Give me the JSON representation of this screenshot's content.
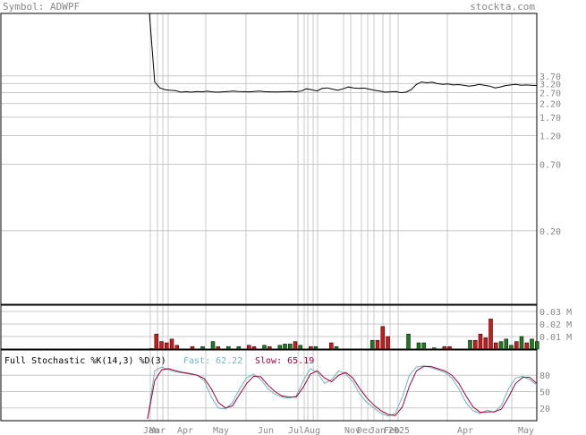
{
  "header": {
    "symbol_label": "Symbol: ADWPF",
    "site": "stockta.com"
  },
  "chart_data": [
    {
      "type": "line",
      "panel": "price",
      "scale": "log",
      "ylim": [
        0.05,
        12
      ],
      "y_ticks": [
        "3.70",
        "3.20",
        "2.70",
        "2.20",
        "1.70",
        "1.20",
        "0.70",
        "0.20"
      ],
      "y_tick_values": [
        3.7,
        3.2,
        2.7,
        2.2,
        1.7,
        1.2,
        0.7,
        0.2
      ],
      "x_ticks": [
        "Jan",
        "Mar",
        "Apr",
        "May",
        "Jun",
        "Jul",
        "Aug",
        "Nov",
        "Dec",
        "Jan",
        "Feb",
        "2025",
        "Apr",
        "May"
      ],
      "series": [
        {
          "points": [
            [
              0,
              12.0
            ],
            [
              1,
              3.3
            ],
            [
              2,
              2.95
            ],
            [
              3,
              2.85
            ],
            [
              4,
              2.82
            ],
            [
              5,
              2.8
            ],
            [
              6,
              2.72
            ],
            [
              7,
              2.75
            ],
            [
              8,
              2.72
            ],
            [
              9,
              2.76
            ],
            [
              10,
              2.74
            ],
            [
              11,
              2.77
            ],
            [
              12,
              2.74
            ],
            [
              13,
              2.72
            ],
            [
              14,
              2.74
            ],
            [
              15,
              2.76
            ],
            [
              16,
              2.78
            ],
            [
              17,
              2.76
            ],
            [
              18,
              2.75
            ],
            [
              19,
              2.74
            ],
            [
              20,
              2.76
            ],
            [
              21,
              2.78
            ],
            [
              22,
              2.75
            ],
            [
              23,
              2.74
            ],
            [
              24,
              2.73
            ],
            [
              25,
              2.74
            ],
            [
              26,
              2.75
            ],
            [
              27,
              2.76
            ],
            [
              28,
              2.74
            ],
            [
              29,
              2.78
            ],
            [
              30,
              2.9
            ],
            [
              31,
              2.85
            ],
            [
              32,
              2.78
            ],
            [
              33,
              2.92
            ],
            [
              34,
              2.95
            ],
            [
              35,
              2.88
            ],
            [
              36,
              2.82
            ],
            [
              37,
              2.9
            ],
            [
              38,
              3.0
            ],
            [
              39,
              2.95
            ],
            [
              40,
              2.92
            ],
            [
              41,
              2.94
            ],
            [
              42,
              2.88
            ],
            [
              43,
              2.82
            ],
            [
              44,
              2.78
            ],
            [
              45,
              2.72
            ],
            [
              46,
              2.74
            ],
            [
              47,
              2.76
            ],
            [
              48,
              2.7
            ],
            [
              49,
              2.72
            ],
            [
              50,
              2.85
            ],
            [
              51,
              3.15
            ],
            [
              52,
              3.3
            ],
            [
              53,
              3.25
            ],
            [
              54,
              3.28
            ],
            [
              55,
              3.2
            ],
            [
              56,
              3.15
            ],
            [
              57,
              3.18
            ],
            [
              58,
              3.12
            ],
            [
              59,
              3.14
            ],
            [
              60,
              3.1
            ],
            [
              61,
              3.05
            ],
            [
              62,
              3.08
            ],
            [
              63,
              3.15
            ],
            [
              64,
              3.1
            ],
            [
              65,
              3.05
            ],
            [
              66,
              2.95
            ],
            [
              67,
              3.0
            ],
            [
              68,
              3.08
            ],
            [
              69,
              3.12
            ],
            [
              70,
              3.15
            ],
            [
              71,
              3.1
            ],
            [
              72,
              3.12
            ],
            [
              73,
              3.1
            ],
            [
              74,
              3.08
            ]
          ]
        }
      ]
    },
    {
      "type": "bar",
      "panel": "volume",
      "y_ticks": [
        "0.03 M",
        "0.02 M",
        "0.01 M"
      ],
      "y_tick_values": [
        0.03,
        0.02,
        0.01
      ],
      "ylim": [
        0,
        0.035
      ],
      "bars": [
        {
          "x": 0,
          "value": 0.0005,
          "dir": "up"
        },
        {
          "x": 1,
          "value": 0.012,
          "dir": "down"
        },
        {
          "x": 2,
          "value": 0.006,
          "dir": "down"
        },
        {
          "x": 3,
          "value": 0.005,
          "dir": "down"
        },
        {
          "x": 4,
          "value": 0.008,
          "dir": "down"
        },
        {
          "x": 5,
          "value": 0.003,
          "dir": "down"
        },
        {
          "x": 8,
          "value": 0.002,
          "dir": "down"
        },
        {
          "x": 10,
          "value": 0.002,
          "dir": "up"
        },
        {
          "x": 12,
          "value": 0.006,
          "dir": "up"
        },
        {
          "x": 13,
          "value": 0.002,
          "dir": "down"
        },
        {
          "x": 15,
          "value": 0.002,
          "dir": "up"
        },
        {
          "x": 17,
          "value": 0.002,
          "dir": "up"
        },
        {
          "x": 19,
          "value": 0.003,
          "dir": "down"
        },
        {
          "x": 20,
          "value": 0.002,
          "dir": "down"
        },
        {
          "x": 22,
          "value": 0.003,
          "dir": "up"
        },
        {
          "x": 23,
          "value": 0.002,
          "dir": "down"
        },
        {
          "x": 25,
          "value": 0.003,
          "dir": "up"
        },
        {
          "x": 26,
          "value": 0.004,
          "dir": "up"
        },
        {
          "x": 27,
          "value": 0.004,
          "dir": "up"
        },
        {
          "x": 28,
          "value": 0.006,
          "dir": "down"
        },
        {
          "x": 29,
          "value": 0.003,
          "dir": "up"
        },
        {
          "x": 31,
          "value": 0.002,
          "dir": "down"
        },
        {
          "x": 32,
          "value": 0.002,
          "dir": "up"
        },
        {
          "x": 35,
          "value": 0.005,
          "dir": "down"
        },
        {
          "x": 36,
          "value": 0.002,
          "dir": "up"
        },
        {
          "x": 43,
          "value": 0.007,
          "dir": "up"
        },
        {
          "x": 44,
          "value": 0.007,
          "dir": "down"
        },
        {
          "x": 45,
          "value": 0.018,
          "dir": "down"
        },
        {
          "x": 46,
          "value": 0.01,
          "dir": "down"
        },
        {
          "x": 50,
          "value": 0.012,
          "dir": "up"
        },
        {
          "x": 52,
          "value": 0.005,
          "dir": "up"
        },
        {
          "x": 53,
          "value": 0.005,
          "dir": "up"
        },
        {
          "x": 55,
          "value": 0.001,
          "dir": "up"
        },
        {
          "x": 57,
          "value": 0.002,
          "dir": "down"
        },
        {
          "x": 58,
          "value": 0.002,
          "dir": "down"
        },
        {
          "x": 62,
          "value": 0.007,
          "dir": "up"
        },
        {
          "x": 63,
          "value": 0.007,
          "dir": "down"
        },
        {
          "x": 64,
          "value": 0.012,
          "dir": "down"
        },
        {
          "x": 65,
          "value": 0.009,
          "dir": "down"
        },
        {
          "x": 66,
          "value": 0.024,
          "dir": "down"
        },
        {
          "x": 67,
          "value": 0.005,
          "dir": "down"
        },
        {
          "x": 68,
          "value": 0.006,
          "dir": "up"
        },
        {
          "x": 69,
          "value": 0.008,
          "dir": "up"
        },
        {
          "x": 70,
          "value": 0.003,
          "dir": "up"
        },
        {
          "x": 71,
          "value": 0.006,
          "dir": "down"
        },
        {
          "x": 72,
          "value": 0.01,
          "dir": "up"
        },
        {
          "x": 73,
          "value": 0.005,
          "dir": "down"
        },
        {
          "x": 74,
          "value": 0.008,
          "dir": "up"
        },
        {
          "x": 75,
          "value": 0.006,
          "dir": "up"
        }
      ]
    },
    {
      "type": "line",
      "panel": "stochastic",
      "title": "Full Stochastic %K(14,3) %D(3)",
      "fast_label": "Fast: 62.22",
      "slow_label": "Slow: 65.19",
      "y_ticks": [
        "80",
        "50",
        "20"
      ],
      "y_tick_values": [
        80,
        50,
        20
      ],
      "ylim": [
        0,
        100
      ],
      "series": [
        {
          "name": "Fast",
          "color": "#6fb6b6",
          "points": [
            [
              0,
              0
            ],
            [
              1,
              88
            ],
            [
              2,
              95
            ],
            [
              3,
              90
            ],
            [
              4,
              86
            ],
            [
              5,
              84
            ],
            [
              6,
              82
            ],
            [
              7,
              80
            ],
            [
              8,
              70
            ],
            [
              9,
              40
            ],
            [
              10,
              20
            ],
            [
              11,
              18
            ],
            [
              12,
              30
            ],
            [
              13,
              55
            ],
            [
              14,
              75
            ],
            [
              15,
              82
            ],
            [
              16,
              72
            ],
            [
              17,
              55
            ],
            [
              18,
              45
            ],
            [
              19,
              40
            ],
            [
              20,
              38
            ],
            [
              21,
              42
            ],
            [
              22,
              70
            ],
            [
              23,
              92
            ],
            [
              24,
              85
            ],
            [
              25,
              65
            ],
            [
              26,
              72
            ],
            [
              27,
              88
            ],
            [
              28,
              82
            ],
            [
              29,
              68
            ],
            [
              30,
              45
            ],
            [
              31,
              30
            ],
            [
              32,
              20
            ],
            [
              33,
              10
            ],
            [
              34,
              5
            ],
            [
              35,
              10
            ],
            [
              36,
              40
            ],
            [
              37,
              80
            ],
            [
              38,
              95
            ],
            [
              39,
              97
            ],
            [
              40,
              94
            ],
            [
              41,
              90
            ],
            [
              42,
              85
            ],
            [
              43,
              75
            ],
            [
              44,
              55
            ],
            [
              45,
              30
            ],
            [
              46,
              15
            ],
            [
              47,
              10
            ],
            [
              48,
              16
            ],
            [
              49,
              12
            ],
            [
              50,
              25
            ],
            [
              51,
              55
            ],
            [
              52,
              75
            ],
            [
              53,
              78
            ],
            [
              54,
              72
            ],
            [
              55,
              62
            ]
          ]
        },
        {
          "name": "Slow",
          "color": "#a0003c",
          "points": [
            [
              0,
              0
            ],
            [
              1,
              70
            ],
            [
              2,
              90
            ],
            [
              3,
              92
            ],
            [
              4,
              88
            ],
            [
              5,
              85
            ],
            [
              6,
              83
            ],
            [
              7,
              80
            ],
            [
              8,
              74
            ],
            [
              9,
              55
            ],
            [
              10,
              30
            ],
            [
              11,
              20
            ],
            [
              12,
              24
            ],
            [
              13,
              45
            ],
            [
              14,
              65
            ],
            [
              15,
              78
            ],
            [
              16,
              77
            ],
            [
              17,
              62
            ],
            [
              18,
              50
            ],
            [
              19,
              42
            ],
            [
              20,
              40
            ],
            [
              21,
              40
            ],
            [
              22,
              58
            ],
            [
              23,
              82
            ],
            [
              24,
              88
            ],
            [
              25,
              75
            ],
            [
              26,
              68
            ],
            [
              27,
              80
            ],
            [
              28,
              85
            ],
            [
              29,
              75
            ],
            [
              30,
              55
            ],
            [
              31,
              38
            ],
            [
              32,
              25
            ],
            [
              33,
              15
            ],
            [
              34,
              8
            ],
            [
              35,
              6
            ],
            [
              36,
              22
            ],
            [
              37,
              60
            ],
            [
              38,
              88
            ],
            [
              39,
              96
            ],
            [
              40,
              96
            ],
            [
              41,
              92
            ],
            [
              42,
              88
            ],
            [
              43,
              80
            ],
            [
              44,
              65
            ],
            [
              45,
              42
            ],
            [
              46,
              22
            ],
            [
              47,
              12
            ],
            [
              48,
              13
            ],
            [
              49,
              13
            ],
            [
              50,
              18
            ],
            [
              51,
              40
            ],
            [
              52,
              65
            ],
            [
              53,
              76
            ],
            [
              54,
              76
            ],
            [
              55,
              65
            ]
          ]
        }
      ]
    }
  ]
}
